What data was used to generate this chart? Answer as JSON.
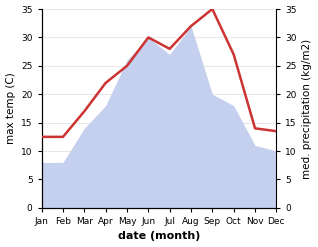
{
  "months": [
    "Jan",
    "Feb",
    "Mar",
    "Apr",
    "May",
    "Jun",
    "Jul",
    "Aug",
    "Sep",
    "Oct",
    "Nov",
    "Dec"
  ],
  "temperature": [
    12.5,
    12.5,
    17.0,
    22.0,
    25.0,
    30.0,
    28.0,
    32.0,
    35.0,
    27.0,
    14.0,
    13.5
  ],
  "precipitation": [
    8.0,
    8.0,
    14.0,
    18.0,
    26.0,
    30.0,
    27.0,
    32.0,
    20.0,
    18.0,
    11.0,
    10.0
  ],
  "temp_color": "#cc3333",
  "precip_color": "#c5d0ee",
  "background_color": "#ffffff",
  "ylabel_left": "max temp (C)",
  "ylabel_right": "med. precipitation (kg/m2)",
  "xlabel": "date (month)",
  "ylim": [
    0,
    35
  ],
  "yticks": [
    0,
    5,
    10,
    15,
    20,
    25,
    30,
    35
  ],
  "temp_linewidth": 1.8,
  "label_fontsize": 7.5,
  "tick_fontsize": 6.5,
  "xlabel_fontsize": 8
}
